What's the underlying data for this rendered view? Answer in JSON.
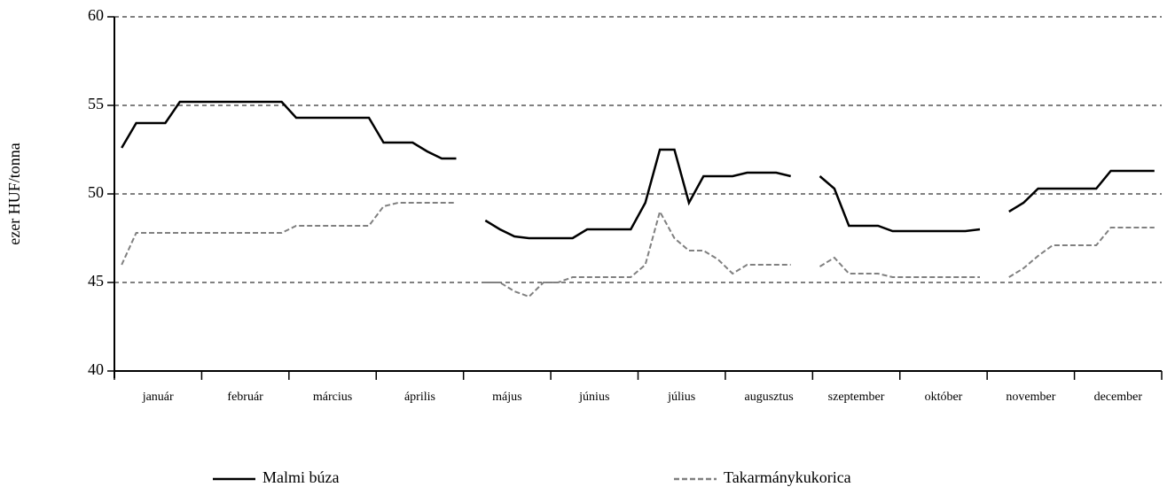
{
  "chart_data": {
    "type": "line",
    "y_label": "ezer HUF/tonna",
    "categories": [
      null,
      null,
      "január",
      null,
      null,
      null,
      null,
      null,
      "február",
      null,
      null,
      null,
      null,
      null,
      "március",
      null,
      null,
      null,
      null,
      null,
      "április",
      null,
      null,
      null,
      null,
      null,
      "május",
      null,
      null,
      null,
      null,
      null,
      "június",
      null,
      null,
      null,
      null,
      null,
      "július",
      null,
      null,
      null,
      null,
      null,
      "augusztus",
      null,
      null,
      null,
      null,
      null,
      "szeptember",
      null,
      null,
      null,
      null,
      null,
      "október",
      null,
      null,
      null,
      null,
      null,
      "november",
      null,
      null,
      null,
      null,
      null,
      "december",
      null,
      null,
      null
    ],
    "series": [
      {
        "name": "Malmi búza",
        "color": "#000000",
        "dashed": false,
        "values": [
          52.6,
          54,
          54,
          54,
          55.2,
          55.2,
          55.2,
          55.2,
          55.2,
          55.2,
          55.2,
          55.2,
          54.3,
          54.3,
          54.3,
          54.3,
          54.3,
          54.3,
          52.9,
          52.9,
          52.9,
          52.4,
          52,
          52,
          null,
          48.5,
          48,
          47.6,
          47.5,
          47.5,
          47.5,
          47.5,
          48,
          48,
          48,
          48,
          49.5,
          52.5,
          52.5,
          49.5,
          51,
          51,
          51,
          51.2,
          51.2,
          51.2,
          51,
          null,
          51,
          50.3,
          48.2,
          48.2,
          48.2,
          47.9,
          47.9,
          47.9,
          47.9,
          47.9,
          47.9,
          48,
          null,
          49,
          49.5,
          50.3,
          50.3,
          50.3,
          50.3,
          50.3,
          51.3,
          51.3,
          51.3,
          51.3
        ]
      },
      {
        "name": "Takarmánykukorica",
        "color": "#808080",
        "dashed": true,
        "values": [
          46,
          47.8,
          47.8,
          47.8,
          47.8,
          47.8,
          47.8,
          47.8,
          47.8,
          47.8,
          47.8,
          47.8,
          48.2,
          48.2,
          48.2,
          48.2,
          48.2,
          48.2,
          49.3,
          49.5,
          49.5,
          49.5,
          49.5,
          49.5,
          null,
          45,
          45,
          44.5,
          44.2,
          45,
          45,
          45.3,
          45.3,
          45.3,
          45.3,
          45.3,
          46,
          49,
          47.5,
          46.8,
          46.8,
          46.3,
          45.5,
          46,
          46,
          46,
          46,
          null,
          45.9,
          46.4,
          45.5,
          45.5,
          45.5,
          45.3,
          45.3,
          45.3,
          45.3,
          45.3,
          45.3,
          45.3,
          null,
          45.3,
          45.8,
          46.5,
          47.1,
          47.1,
          47.1,
          47.1,
          48.1,
          48.1,
          48.1,
          48.1
        ]
      }
    ],
    "ylim": [
      40,
      60
    ],
    "yticks": [
      40,
      45,
      50,
      55,
      60
    ],
    "grid": true,
    "months_per_axis": 12,
    "legend": "bottom"
  }
}
